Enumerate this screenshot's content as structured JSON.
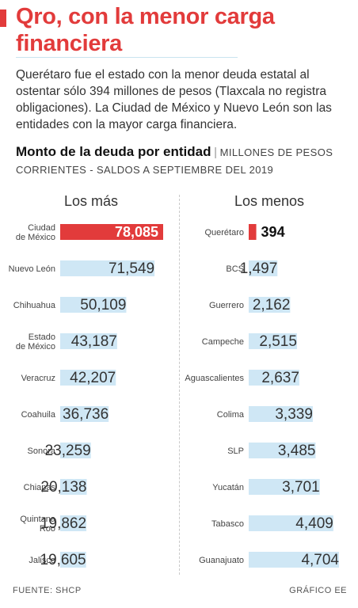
{
  "title": "Qro, con la menor carga financiera",
  "intro": "Querétaro fue el estado con la menor deuda estatal al ostentar sólo 394 millones de pesos (Tlaxcala no registra obligaciones). La Ciudad de México y Nuevo León son las entidades con la mayor carga financiera.",
  "subtitle": {
    "main": "Monto de la deuda por entidad",
    "separator": "|",
    "detail": "MILLONES DE PESOS CORRIENTES - SALDOS A SEPTIEMBRE DEL 2019"
  },
  "colors": {
    "accent": "#e23b3b",
    "bar": "#cfe7f5",
    "highlight": "#e23b3b"
  },
  "chart_data": [
    {
      "type": "bar",
      "orientation": "horizontal",
      "title": "Los más",
      "categories": [
        "Ciudad\nde México",
        "Nuevo León",
        "Chihuahua",
        "Estado\nde México",
        "Veracruz",
        "Coahuila",
        "Sonora",
        "Chiapas",
        "Quintana\nRoo",
        "Jalisco"
      ],
      "values": [
        78085,
        71549,
        50109,
        43187,
        42207,
        36736,
        23259,
        20138,
        19862,
        19605
      ],
      "labels": [
        "78,085",
        "71,549",
        "50,109",
        "43,187",
        "42,207",
        "36,736",
        "23,259",
        "20,138",
        "19,862",
        "19,605"
      ],
      "highlight_index": 0
    },
    {
      "type": "bar",
      "orientation": "horizontal",
      "title": "Los menos",
      "categories": [
        "Querétaro",
        "BCS",
        "Guerrero",
        "Campeche",
        "Aguascalientes",
        "Colima",
        "SLP",
        "Yucatán",
        "Tabasco",
        "Guanajuato"
      ],
      "values": [
        394,
        1497,
        2162,
        2515,
        2637,
        3339,
        3485,
        3701,
        4409,
        4704
      ],
      "labels": [
        "394",
        "1,497",
        "2,162",
        "2,515",
        "2,637",
        "3,339",
        "3,485",
        "3,701",
        "4,409",
        "4,704"
      ],
      "highlight_index": 0
    }
  ],
  "footer": {
    "source": "FUENTE: SHCP",
    "credit": "GRÁFICO EE"
  }
}
